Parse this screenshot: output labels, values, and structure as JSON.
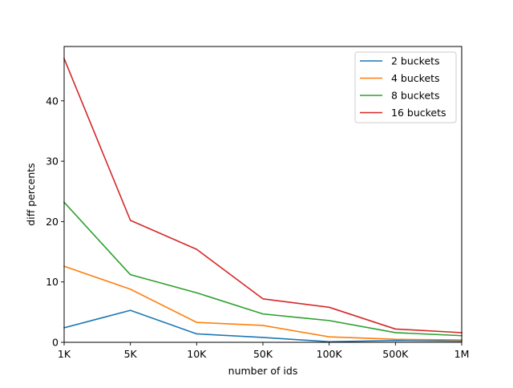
{
  "chart_data": {
    "type": "line",
    "title": "",
    "xlabel": "number of ids",
    "ylabel": "diff percents",
    "categories": [
      "1K",
      "5K",
      "10K",
      "50K",
      "100K",
      "500K",
      "1M"
    ],
    "ylim": [
      0,
      49
    ],
    "yticks": [
      0,
      10,
      20,
      30,
      40
    ],
    "grid": false,
    "legend_position": "top-right",
    "series": [
      {
        "name": "2 buckets",
        "color": "#1f77b4",
        "values": [
          2.4,
          5.3,
          1.4,
          0.8,
          0.1,
          0.3,
          0.2
        ]
      },
      {
        "name": "4 buckets",
        "color": "#ff7f0e",
        "values": [
          12.6,
          8.8,
          3.3,
          2.8,
          0.9,
          0.5,
          0.4
        ]
      },
      {
        "name": "8 buckets",
        "color": "#2ca02c",
        "values": [
          23.2,
          11.2,
          8.2,
          4.7,
          3.6,
          1.6,
          1.1
        ]
      },
      {
        "name": "16 buckets",
        "color": "#d62728",
        "values": [
          47.0,
          20.2,
          15.4,
          7.2,
          5.8,
          2.2,
          1.6
        ]
      }
    ]
  }
}
